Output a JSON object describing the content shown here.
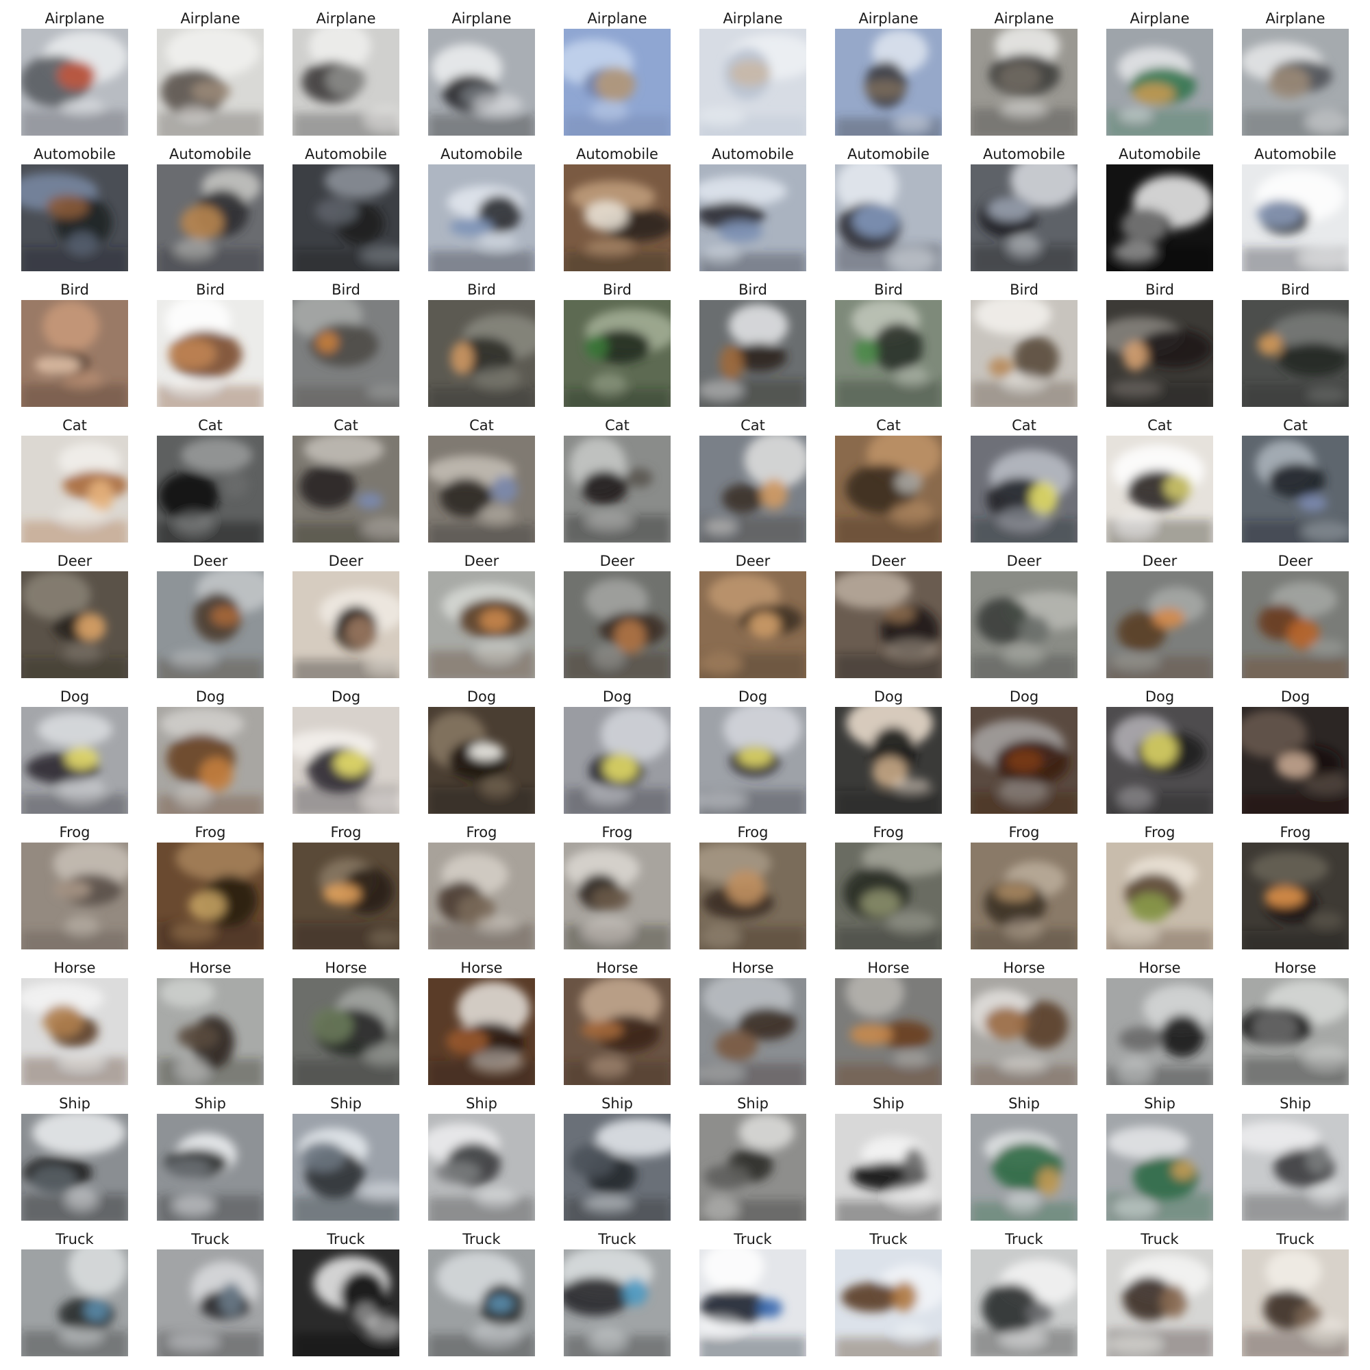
{
  "rows": [
    {
      "label": "Airplane",
      "tiles": [
        {
          "bg": "#b8bcc2",
          "c1": "#eceef0",
          "c2": "#5a5d62",
          "c3": "#c0573f"
        },
        {
          "bg": "#d9d9d6",
          "c1": "#f2f2f0",
          "c2": "#5b534c",
          "c3": "#9a8a78"
        },
        {
          "bg": "#d0d0ce",
          "c1": "#f0f0ee",
          "c2": "#3e3c3a",
          "c3": "#8c8c8a"
        },
        {
          "bg": "#a9aeb4",
          "c1": "#eff0f1",
          "c2": "#2a2a2c",
          "c3": "#6f7378"
        },
        {
          "bg": "#8fa6d2",
          "c1": "#c7d6ee",
          "c2": "#6e7fa8",
          "c3": "#b59a7a"
        },
        {
          "bg": "#d7dce4",
          "c1": "#eef1f5",
          "c2": "#b8c2d0",
          "c3": "#c9b8a6"
        },
        {
          "bg": "#96a8c9",
          "c1": "#dfe6f0",
          "c2": "#3b3c40",
          "c3": "#7a6b5c"
        },
        {
          "bg": "#9a9892",
          "c1": "#ededeb",
          "c2": "#3f3d3b",
          "c3": "#706a62"
        },
        {
          "bg": "#9ea4aa",
          "c1": "#e6e8ea",
          "c2": "#34764f",
          "c3": "#c59a52"
        },
        {
          "bg": "#a5aaae",
          "c1": "#e8e9ea",
          "c2": "#4f5256",
          "c3": "#9a8a78"
        }
      ]
    },
    {
      "label": "Automobile",
      "tiles": [
        {
          "bg": "#4a4e55",
          "c1": "#7a8aa4",
          "c2": "#1f2125",
          "c3": "#8a5a38"
        },
        {
          "bg": "#6a6c70",
          "c1": "#c9c9c6",
          "c2": "#2e2f32",
          "c3": "#b8854f"
        },
        {
          "bg": "#3c3f44",
          "c1": "#8e949c",
          "c2": "#1c1d20",
          "c3": "#5c6068"
        },
        {
          "bg": "#aeb6c2",
          "c1": "#e4e9f0",
          "c2": "#2b2d32",
          "c3": "#7e93b8"
        },
        {
          "bg": "#7a5a42",
          "c1": "#c2a07e",
          "c2": "#2e2420",
          "c3": "#e8e0d4"
        },
        {
          "bg": "#aab3c0",
          "c1": "#e2e8f0",
          "c2": "#2c2e33",
          "c3": "#7c90b4"
        },
        {
          "bg": "#b0b8c4",
          "c1": "#e6ebf1",
          "c2": "#2d2f34",
          "c3": "#8196ba"
        },
        {
          "bg": "#5e6268",
          "c1": "#d8dbe0",
          "c2": "#1e1f22",
          "c3": "#9aa3b0"
        },
        {
          "bg": "#121212",
          "c1": "#f2f2f2",
          "c2": "#050505",
          "c3": "#7a7a7a"
        },
        {
          "bg": "#e8eaec",
          "c1": "#ffffff",
          "c2": "#2a2c30",
          "c3": "#8898b6"
        }
      ]
    },
    {
      "label": "Bird",
      "tiles": [
        {
          "bg": "#9a7a66",
          "c1": "#c99a7a",
          "c2": "#4a3428",
          "c3": "#e2c2a8"
        },
        {
          "bg": "#ececea",
          "c1": "#ffffff",
          "c2": "#7a4a2c",
          "c3": "#c08452"
        },
        {
          "bg": "#7d7f80",
          "c1": "#a8aaa9",
          "c2": "#4c4a46",
          "c3": "#c8803e"
        },
        {
          "bg": "#5c5a52",
          "c1": "#8a8a80",
          "c2": "#2e2c28",
          "c3": "#d19a66"
        },
        {
          "bg": "#5d6a52",
          "c1": "#a6b098",
          "c2": "#1e2a1c",
          "c3": "#3c7a3a"
        },
        {
          "bg": "#6a6e70",
          "c1": "#e6e8ea",
          "c2": "#2c2620",
          "c3": "#a06a3c"
        },
        {
          "bg": "#7e8a7a",
          "c1": "#c2c8bc",
          "c2": "#2a3028",
          "c3": "#4a8a48"
        },
        {
          "bg": "#c8c4be",
          "c1": "#f4f2ee",
          "c2": "#5a4a3c",
          "c3": "#b88a5a"
        },
        {
          "bg": "#3c3a36",
          "c1": "#8a8680",
          "c2": "#1c1a18",
          "c3": "#d4a070"
        },
        {
          "bg": "#4c4e4c",
          "c1": "#7a7c7a",
          "c2": "#262826",
          "c3": "#d49a5a"
        }
      ]
    },
    {
      "label": "Cat",
      "tiles": [
        {
          "bg": "#dcd8d2",
          "c1": "#f2f0ec",
          "c2": "#a86a3a",
          "c3": "#e6b27c"
        },
        {
          "bg": "#5e6060",
          "c1": "#9a9c9c",
          "c2": "#0e0e0e",
          "c3": "#6a6c6c"
        },
        {
          "bg": "#7c7870",
          "c1": "#c4c0b8",
          "c2": "#2a2622",
          "c3": "#7a8ab0"
        },
        {
          "bg": "#807a72",
          "c1": "#c6c0b6",
          "c2": "#2c2824",
          "c3": "#7c8aae"
        },
        {
          "bg": "#8a8c8a",
          "c1": "#c8cac8",
          "c2": "#1c1a18",
          "c3": "#5a5450"
        },
        {
          "bg": "#7a8088",
          "c1": "#e2e2e0",
          "c2": "#3a302a",
          "c3": "#d09a62"
        },
        {
          "bg": "#8a6a4c",
          "c1": "#c09468",
          "c2": "#3c2c20",
          "c3": "#a8a6a2"
        },
        {
          "bg": "#6e7078",
          "c1": "#bcc0c8",
          "c2": "#22242a",
          "c3": "#e6e06a"
        },
        {
          "bg": "#e6e2dc",
          "c1": "#ffffff",
          "c2": "#2a2622",
          "c3": "#cfc86a"
        },
        {
          "bg": "#5e666e",
          "c1": "#aeb6be",
          "c2": "#1e2228",
          "c3": "#7c8ab0"
        }
      ]
    },
    {
      "label": "Deer",
      "tiles": [
        {
          "bg": "#5a5248",
          "c1": "#8a8276",
          "c2": "#2a241e",
          "c3": "#e0a66a"
        },
        {
          "bg": "#8e9498",
          "c1": "#c4c8ca",
          "c2": "#4a3a2e",
          "c3": "#a8683a"
        },
        {
          "bg": "#d6ccc0",
          "c1": "#f0ebe4",
          "c2": "#1e1612",
          "c3": "#9a7860"
        },
        {
          "bg": "#a8aaa6",
          "c1": "#d8dad6",
          "c2": "#5a3c24",
          "c3": "#c8864a"
        },
        {
          "bg": "#70726e",
          "c1": "#a4a6a2",
          "c2": "#3a2c22",
          "c3": "#b27646"
        },
        {
          "bg": "#8a6c50",
          "c1": "#c09870",
          "c2": "#3e3024",
          "c3": "#d2a06a"
        },
        {
          "bg": "#6a5c50",
          "c1": "#bcaea0",
          "c2": "#1e1814",
          "c3": "#8a6a4e"
        },
        {
          "bg": "#8a8c86",
          "c1": "#b8bab4",
          "c2": "#3a3e3a",
          "c3": "#6a6e6a"
        },
        {
          "bg": "#7c7e7c",
          "c1": "#a8aaa8",
          "c2": "#5a3e24",
          "c3": "#d48a4a"
        },
        {
          "bg": "#7a7c78",
          "c1": "#a6a8a4",
          "c2": "#6a3a1c",
          "c3": "#b8642a"
        }
      ]
    },
    {
      "label": "Dog",
      "tiles": [
        {
          "bg": "#a4a6aa",
          "c1": "#dcdee2",
          "c2": "#2e2a30",
          "c3": "#e4dc6a"
        },
        {
          "bg": "#a8a6a2",
          "c1": "#d2d0cc",
          "c2": "#6a4226",
          "c3": "#c47e3e"
        },
        {
          "bg": "#d8d2cc",
          "c1": "#f6f2ee",
          "c2": "#2e2a30",
          "c3": "#e8e06a"
        },
        {
          "bg": "#4a3e32",
          "c1": "#8a7a64",
          "c2": "#1c1610",
          "c3": "#f2f0ea"
        },
        {
          "bg": "#9a9ca2",
          "c1": "#d4d6dc",
          "c2": "#2a2830",
          "c3": "#e2da66"
        },
        {
          "bg": "#9ea2a8",
          "c1": "#d6d8de",
          "c2": "#2c2a32",
          "c3": "#e0d866"
        },
        {
          "bg": "#3a3a38",
          "c1": "#f2e4d4",
          "c2": "#181816",
          "c3": "#c8a886"
        },
        {
          "bg": "#5a4a40",
          "c1": "#a8a6a4",
          "c2": "#3a1c0e",
          "c3": "#7a3a1a"
        },
        {
          "bg": "#4e4c4e",
          "c1": "#b4b2b6",
          "c2": "#1e1c20",
          "c3": "#dcd464"
        },
        {
          "bg": "#2c2624",
          "c1": "#6a5a50",
          "c2": "#140e0c",
          "c3": "#c8a892"
        }
      ]
    },
    {
      "label": "Frog",
      "tiles": [
        {
          "bg": "#948a80",
          "c1": "#c8c0b6",
          "c2": "#5a5048",
          "c3": "#a89686"
        },
        {
          "bg": "#6a4a30",
          "c1": "#a8845c",
          "c2": "#2a1c12",
          "c3": "#c2a060"
        },
        {
          "bg": "#5a4a38",
          "c1": "#8a7a64",
          "c2": "#2a2018",
          "c3": "#e0a05a"
        },
        {
          "bg": "#a8a29a",
          "c1": "#d6d0c8",
          "c2": "#4a3c30",
          "c3": "#7a6a5a"
        },
        {
          "bg": "#a8a49e",
          "c1": "#dcd8d2",
          "c2": "#2e261e",
          "c3": "#6a5a4a"
        },
        {
          "bg": "#7a6c5a",
          "c1": "#a89a86",
          "c2": "#3a2e22",
          "c3": "#c09060"
        },
        {
          "bg": "#6a6c62",
          "c1": "#a4a69a",
          "c2": "#2a2c26",
          "c3": "#8a8e6a"
        },
        {
          "bg": "#8a7a68",
          "c1": "#bcae9c",
          "c2": "#3c3026",
          "c3": "#a88862"
        },
        {
          "bg": "#c8bcac",
          "c1": "#ece4d8",
          "c2": "#5a4632",
          "c3": "#8a9a4a"
        },
        {
          "bg": "#3e3a34",
          "c1": "#6a6458",
          "c2": "#1c1a16",
          "c3": "#e0924a"
        }
      ]
    },
    {
      "label": "Horse",
      "tiles": [
        {
          "bg": "#dcdcdc",
          "c1": "#f4f4f4",
          "c2": "#5a3c24",
          "c3": "#b0804e"
        },
        {
          "bg": "#a8aaa8",
          "c1": "#cfd1cf",
          "c2": "#2c2620",
          "c3": "#5a4a3e"
        },
        {
          "bg": "#6c6e6a",
          "c1": "#a6a8a4",
          "c2": "#262826",
          "c3": "#6a7a5a"
        },
        {
          "bg": "#5a3c28",
          "c1": "#e8e4de",
          "c2": "#2a1a10",
          "c3": "#9a5a2e"
        },
        {
          "bg": "#6a5444",
          "c1": "#c6aa92",
          "c2": "#3a2418",
          "c3": "#a66a3c"
        },
        {
          "bg": "#8a8e92",
          "c1": "#bcc0c4",
          "c2": "#3a2e26",
          "c3": "#7a5a40"
        },
        {
          "bg": "#7c7c7a",
          "c1": "#b8b6b2",
          "c2": "#6a3e20",
          "c3": "#c88a4e"
        },
        {
          "bg": "#a8a6a2",
          "c1": "#e4e2de",
          "c2": "#5a3e28",
          "c3": "#9a6a42"
        },
        {
          "bg": "#a4a6a6",
          "c1": "#d6d8d8",
          "c2": "#1a1a1a",
          "c3": "#6a6a6a"
        },
        {
          "bg": "#a6a8a6",
          "c1": "#d8dad8",
          "c2": "#161616",
          "c3": "#686868"
        }
      ]
    },
    {
      "label": "Ship",
      "tiles": [
        {
          "bg": "#8a8e92",
          "c1": "#eceef0",
          "c2": "#1c1e20",
          "c3": "#5a6066"
        },
        {
          "bg": "#8e9296",
          "c1": "#f0f2f4",
          "c2": "#2a2c2e",
          "c3": "#6a6e72"
        },
        {
          "bg": "#9ca2aa",
          "c1": "#e8ecf0",
          "c2": "#2e3034",
          "c3": "#6a7480"
        },
        {
          "bg": "#b8babc",
          "c1": "#eeeff0",
          "c2": "#3a3c3e",
          "c3": "#7a7c7e"
        },
        {
          "bg": "#6a7078",
          "c1": "#e6eaee",
          "c2": "#24282c",
          "c3": "#4a525a"
        },
        {
          "bg": "#8e8e8c",
          "c1": "#dededc",
          "c2": "#2c2c2a",
          "c3": "#5e5e5c"
        },
        {
          "bg": "#d8d8d8",
          "c1": "#f6f6f6",
          "c2": "#121212",
          "c3": "#6a6a6a"
        },
        {
          "bg": "#9ea2a6",
          "c1": "#e4e6e8",
          "c2": "#2e6a44",
          "c3": "#c29a52"
        },
        {
          "bg": "#a2a6aa",
          "c1": "#e6e8ea",
          "c2": "#2e6a46",
          "c3": "#c49c54"
        },
        {
          "bg": "#c8cacc",
          "c1": "#eeeff0",
          "c2": "#3a3c3e",
          "c3": "#7a7c7e"
        }
      ]
    },
    {
      "label": "Truck",
      "tiles": [
        {
          "bg": "#9ea2a4",
          "c1": "#dcdfe0",
          "c2": "#2a2c2e",
          "c3": "#5a8aa8"
        },
        {
          "bg": "#a2a4a6",
          "c1": "#dadcde",
          "c2": "#262628",
          "c3": "#6a7a88"
        },
        {
          "bg": "#2a2a2a",
          "c1": "#f0f0f0",
          "c2": "#0a0a0a",
          "c3": "#8a8a8a"
        },
        {
          "bg": "#9ca0a2",
          "c1": "#d8dcde",
          "c2": "#2a2c2e",
          "c3": "#5a8eae"
        },
        {
          "bg": "#a0a4a6",
          "c1": "#dce0e2",
          "c2": "#28292b",
          "c3": "#4e9ac2"
        },
        {
          "bg": "#e4e6ea",
          "c1": "#ffffff",
          "c2": "#1e2630",
          "c3": "#3a6ab0"
        },
        {
          "bg": "#dce2ea",
          "c1": "#f2f5f8",
          "c2": "#5a3a22",
          "c3": "#b07a44"
        },
        {
          "bg": "#cacccc",
          "c1": "#f4f4f4",
          "c2": "#2a2c2e",
          "c3": "#6a6c6e"
        },
        {
          "bg": "#d6d6d4",
          "c1": "#f6f6f4",
          "c2": "#3a2e26",
          "c3": "#8a6a52"
        },
        {
          "bg": "#d8d2ca",
          "c1": "#f2eee8",
          "c2": "#3a2e24",
          "c3": "#7a6452"
        }
      ]
    }
  ]
}
